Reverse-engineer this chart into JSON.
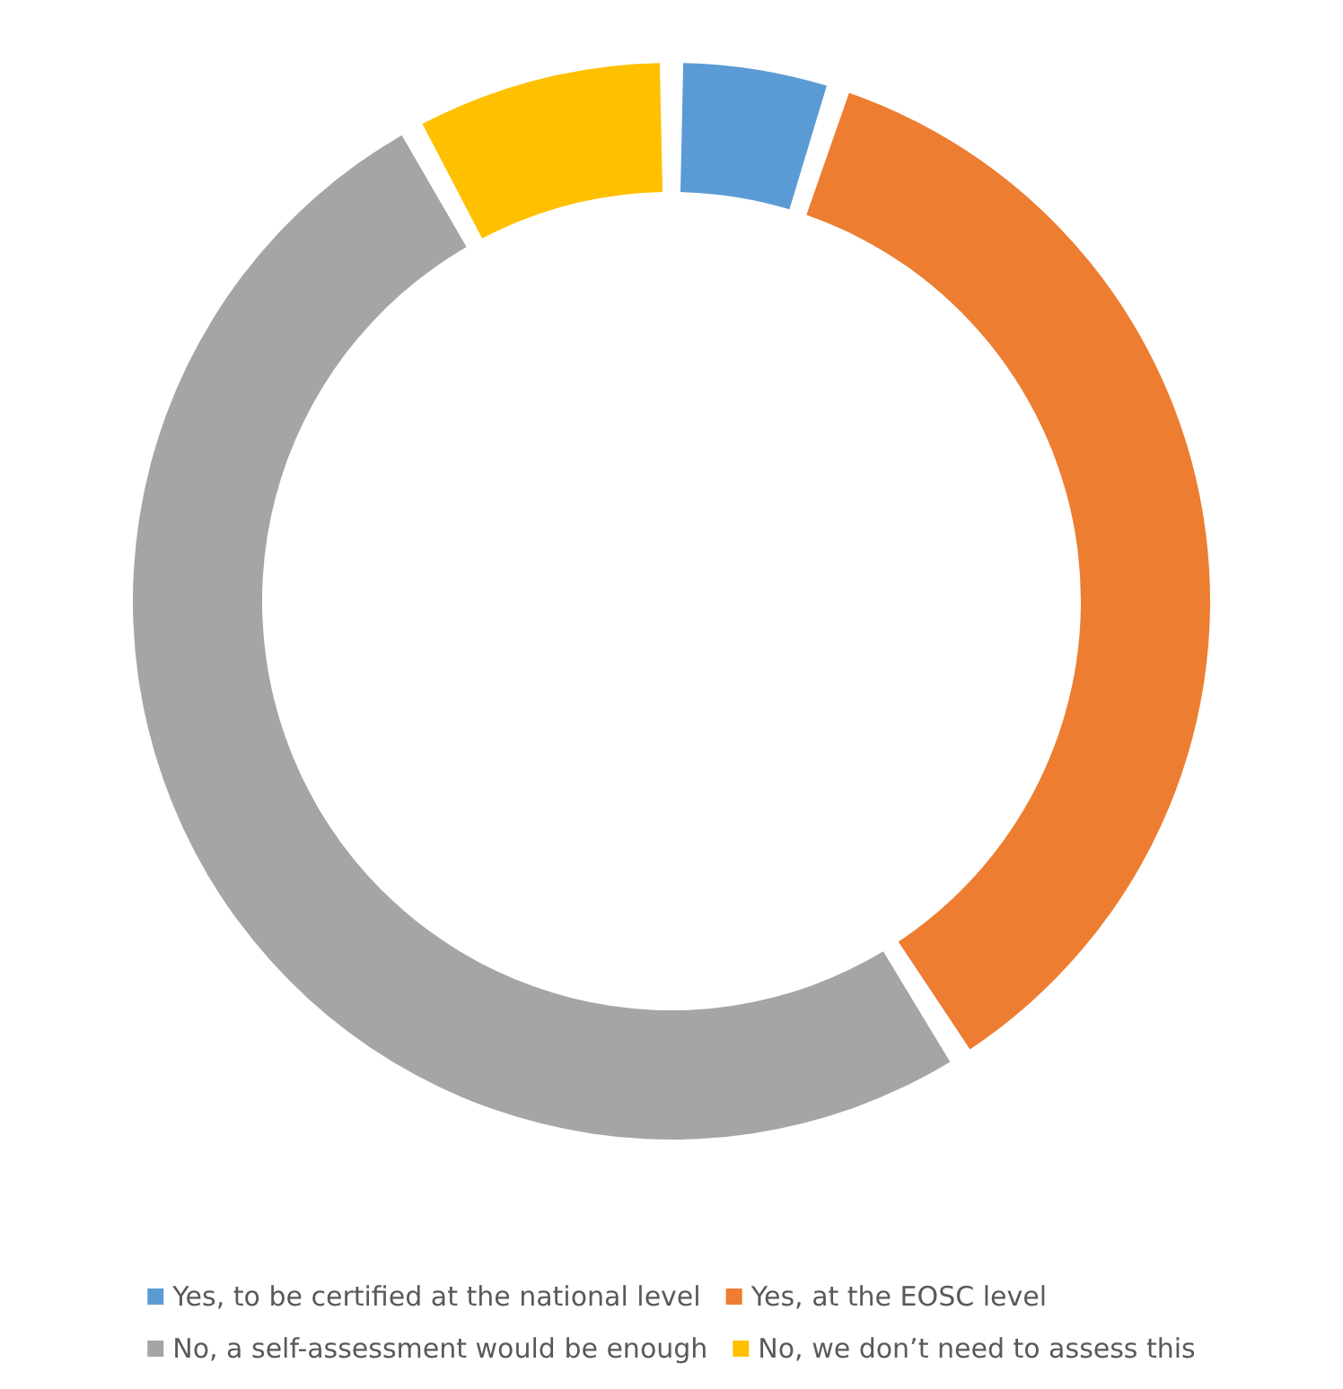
{
  "chart_data": {
    "type": "donut",
    "categories": [
      "Yes, to be certified at the national level",
      "Yes, at the EOSC level",
      "No, a self-assessment would be enough",
      "No, we don’t need to assess this"
    ],
    "values": [
      5,
      36,
      51,
      8
    ],
    "colors": [
      "#5b9bd5",
      "#ed7d31",
      "#a5a5a5",
      "#ffc000"
    ],
    "legend": "bottom"
  }
}
